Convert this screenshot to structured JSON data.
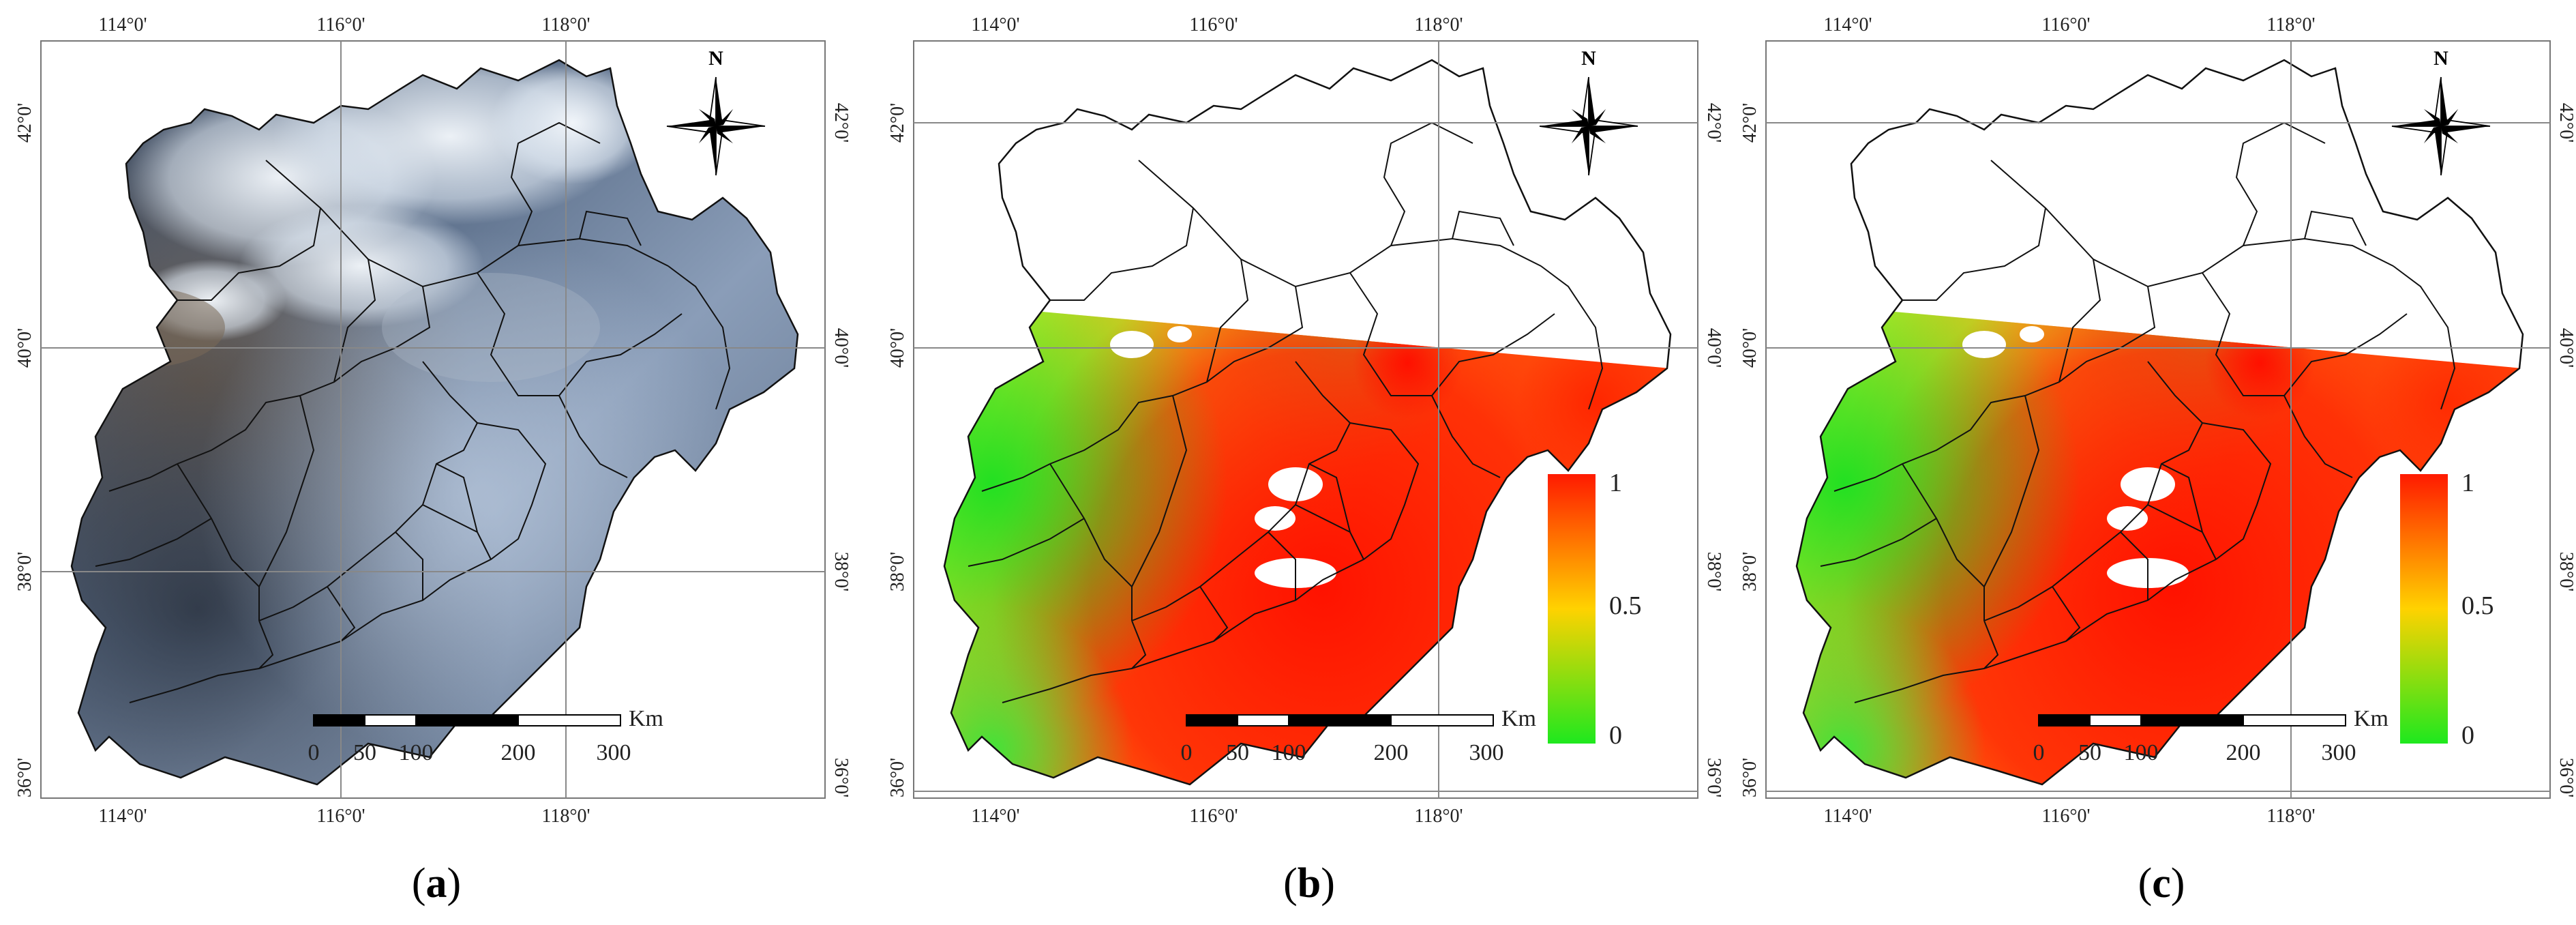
{
  "figure": {
    "panels": [
      {
        "id": "a",
        "caption_letter": "a",
        "kind": "true-color-image",
        "lon_labels": [
          "114°0'",
          "116°0'",
          "118°0'"
        ],
        "lat_labels": [
          "42°0'",
          "40°0'",
          "38°0'",
          "36°0'"
        ],
        "north_label": "N",
        "scale": {
          "ticks": [
            "0",
            "50",
            "100",
            "200",
            "300"
          ],
          "unit": "Km"
        }
      },
      {
        "id": "b",
        "caption_letter": "b",
        "kind": "probability-map",
        "lon_labels": [
          "114°0'",
          "116°0'",
          "118°0'"
        ],
        "lat_labels": [
          "42°0'",
          "40°0'",
          "38°0'",
          "36°0'"
        ],
        "north_label": "N",
        "scale": {
          "ticks": [
            "0",
            "50",
            "100",
            "200",
            "300"
          ],
          "unit": "Km"
        },
        "legend": {
          "max": "1",
          "mid": "0.5",
          "min": "0"
        }
      },
      {
        "id": "c",
        "caption_letter": "c",
        "kind": "probability-map",
        "lon_labels": [
          "114°0'",
          "116°0'",
          "118°0'"
        ],
        "lat_labels": [
          "42°0'",
          "40°0'",
          "38°0'",
          "36°0'"
        ],
        "north_label": "N",
        "scale": {
          "ticks": [
            "0",
            "50",
            "100",
            "200",
            "300"
          ],
          "unit": "Km"
        },
        "legend": {
          "max": "1",
          "mid": "0.5",
          "min": "0"
        }
      }
    ],
    "colors": {
      "ramp_high": "#ff1a00",
      "ramp_mid": "#ffd200",
      "ramp_low": "#1ee81e",
      "satellite_dark": "#3c4a5e",
      "satellite_light": "#a7b8cf",
      "cloud": "#eef3f8",
      "boundary": "#111111"
    }
  }
}
